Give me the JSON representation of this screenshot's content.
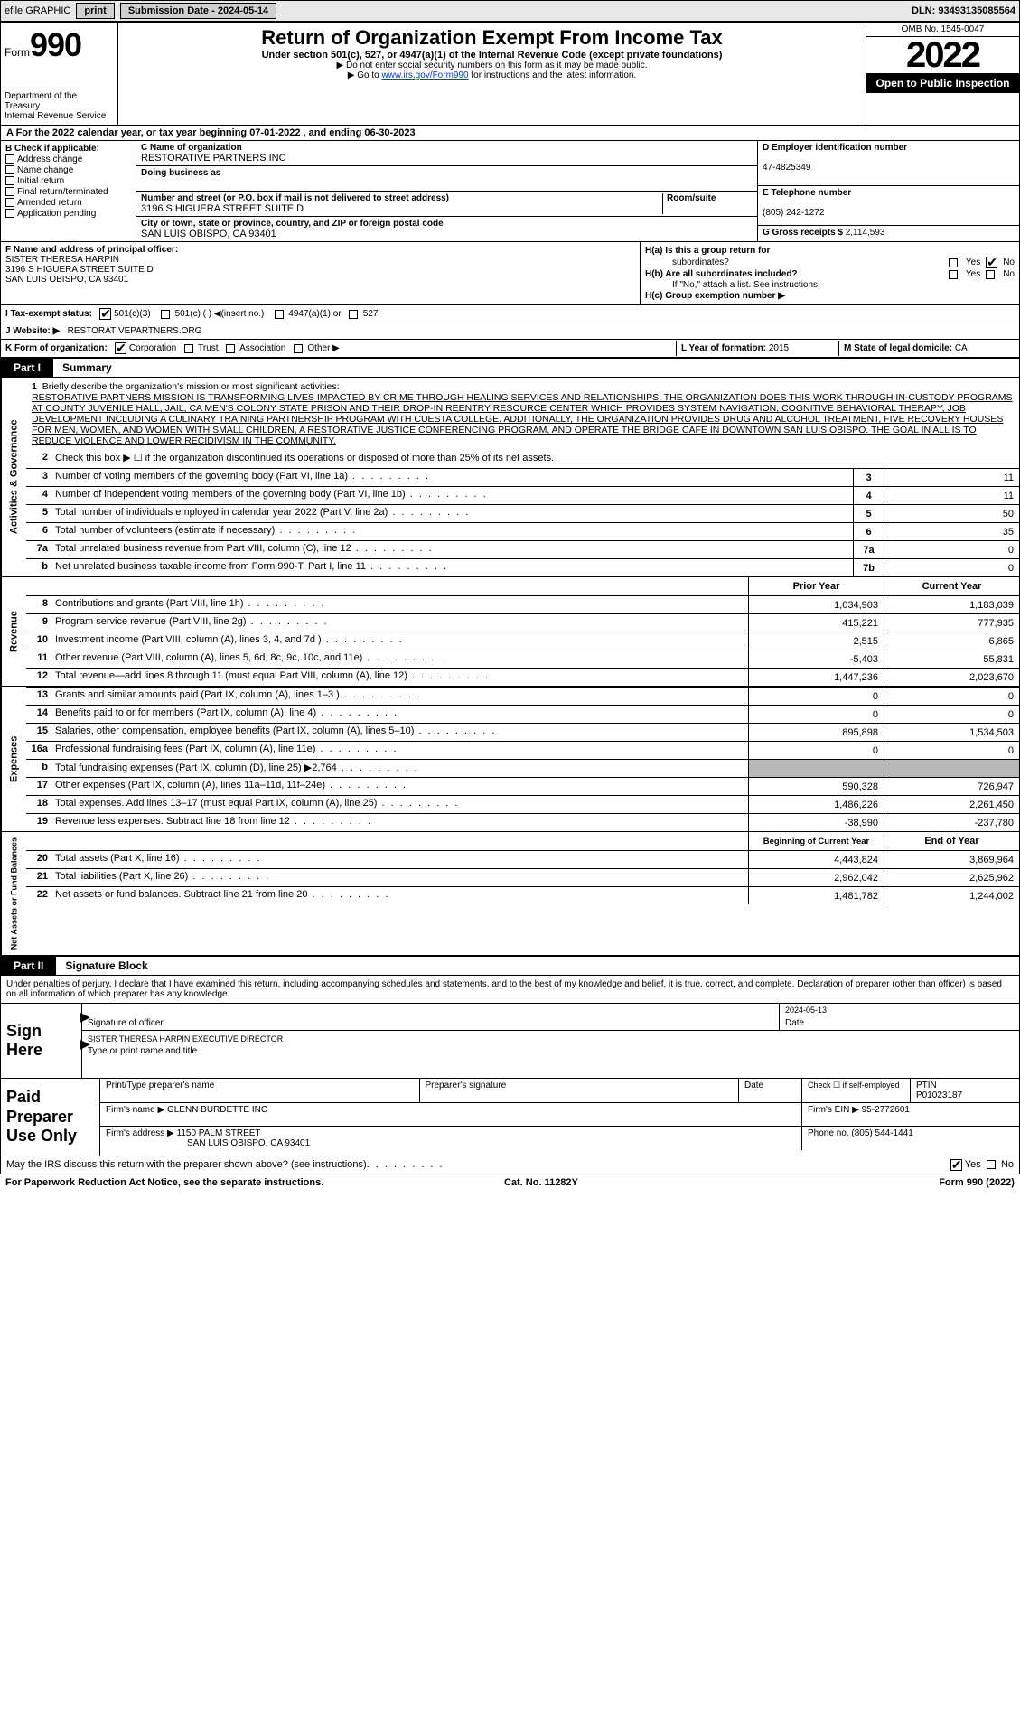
{
  "colors": {
    "bg": "#ffffff",
    "border": "#000000",
    "headerBg": "#e8e8e8",
    "btnBg": "#d0d0d0",
    "black": "#000000",
    "white": "#ffffff",
    "shaded": "#b8b8b8",
    "link": "#0044cc"
  },
  "topbar": {
    "efile": "efile GRAPHIC",
    "print": "print",
    "submission": "Submission Date - 2024-05-14",
    "dln": "DLN: 93493135085564"
  },
  "header": {
    "form": "Form",
    "num": "990",
    "dept": "Department of the Treasury",
    "irs": "Internal Revenue Service",
    "title": "Return of Organization Exempt From Income Tax",
    "sub1": "Under section 501(c), 527, or 4947(a)(1) of the Internal Revenue Code (except private foundations)",
    "sub2": "▶ Do not enter social security numbers on this form as it may be made public.",
    "sub3_pre": "▶ Go to ",
    "sub3_link": "www.irs.gov/Form990",
    "sub3_post": " for instructions and the latest information.",
    "omb": "OMB No. 1545-0047",
    "year": "2022",
    "open": "Open to Public Inspection"
  },
  "rowA": "A For the 2022 calendar year, or tax year beginning 07-01-2022   , and ending 06-30-2023",
  "colB": {
    "hdr": "B Check if applicable:",
    "opts": [
      "Address change",
      "Name change",
      "Initial return",
      "Final return/terminated",
      "Amended return",
      "Application pending"
    ]
  },
  "colC": {
    "name_lbl": "C Name of organization",
    "name_val": "RESTORATIVE PARTNERS INC",
    "dba_lbl": "Doing business as",
    "dba_val": "",
    "street_lbl": "Number and street (or P.O. box if mail is not delivered to street address)",
    "street_val": "3196 S HIGUERA STREET SUITE D",
    "room_lbl": "Room/suite",
    "city_lbl": "City or town, state or province, country, and ZIP or foreign postal code",
    "city_val": "SAN LUIS OBISPO, CA  93401"
  },
  "colDE": {
    "d_lbl": "D Employer identification number",
    "d_val": "47-4825349",
    "e_lbl": "E Telephone number",
    "e_val": "(805) 242-1272",
    "g_lbl": "G Gross receipts $",
    "g_val": "2,114,593"
  },
  "rowF": {
    "lbl": "F Name and address of principal officer:",
    "name": "SISTER THERESA HARPIN",
    "addr1": "3196 S HIGUERA STREET SUITE D",
    "addr2": "SAN LUIS OBISPO, CA  93401"
  },
  "rowH": {
    "ha": "H(a)  Is this a group return for",
    "ha2": "subordinates?",
    "hb": "H(b)  Are all subordinates included?",
    "hb2": "If \"No,\" attach a list. See instructions.",
    "hc": "H(c)  Group exemption number ▶",
    "yes": "Yes",
    "no": "No"
  },
  "rowI": {
    "lbl": "I    Tax-exempt status:",
    "opts": [
      "501(c)(3)",
      "501(c) (  ) ◀(insert no.)",
      "4947(a)(1) or",
      "527"
    ]
  },
  "rowJ": {
    "lbl": "J   Website: ▶",
    "val": "RESTORATIVEPARTNERS.ORG"
  },
  "rowK": {
    "lbl": "K Form of organization:",
    "opts": [
      "Corporation",
      "Trust",
      "Association",
      "Other ▶"
    ],
    "l_lbl": "L Year of formation:",
    "l_val": "2015",
    "m_lbl": "M State of legal domicile:",
    "m_val": "CA"
  },
  "part1": {
    "num": "Part I",
    "title": "Summary"
  },
  "sections": {
    "ag": "Activities & Governance",
    "rev": "Revenue",
    "exp": "Expenses",
    "nafb": "Net Assets or Fund Balances"
  },
  "mission": {
    "n": "1",
    "lbl": "Briefly describe the organization's mission or most significant activities:",
    "txt": "RESTORATIVE PARTNERS MISSION IS TRANSFORMING LIVES IMPACTED BY CRIME THROUGH HEALING SERVICES AND RELATIONSHIPS. THE ORGANIZATION DOES THIS WORK THROUGH IN-CUSTODY PROGRAMS AT COUNTY JUVENILE HALL, JAIL, CA MEN'S COLONY STATE PRISON AND THEIR DROP-IN REENTRY RESOURCE CENTER WHICH PROVIDES SYSTEM NAVIGATION, COGNITIVE BEHAVIORAL THERAPY, JOB DEVELOPMENT INCLUDING A CULINARY TRAINING PARTNERSHIP PROGRAM WITH CUESTA COLLEGE. ADDITIONALLY, THE ORGANIZATION PROVIDES DRUG AND ALCOHOL TREATMENT, FIVE RECOVERY HOUSES FOR MEN, WOMEN, AND WOMEN WITH SMALL CHILDREN, A RESTORATIVE JUSTICE CONFERENCING PROGRAM, AND OPERATE THE BRIDGE CAFE IN DOWNTOWN SAN LUIS OBISPO. THE GOAL IN ALL IS TO REDUCE VIOLENCE AND LOWER RECIDIVISM IN THE COMMUNITY."
  },
  "lines_ag": [
    {
      "n": "2",
      "txt": "Check this box ▶ ☐ if the organization discontinued its operations or disposed of more than 25% of its net assets.",
      "box": "",
      "val": ""
    },
    {
      "n": "3",
      "txt": "Number of voting members of the governing body (Part VI, line 1a)",
      "box": "3",
      "val": "11"
    },
    {
      "n": "4",
      "txt": "Number of independent voting members of the governing body (Part VI, line 1b)",
      "box": "4",
      "val": "11"
    },
    {
      "n": "5",
      "txt": "Total number of individuals employed in calendar year 2022 (Part V, line 2a)",
      "box": "5",
      "val": "50"
    },
    {
      "n": "6",
      "txt": "Total number of volunteers (estimate if necessary)",
      "box": "6",
      "val": "35"
    },
    {
      "n": "7a",
      "txt": "Total unrelated business revenue from Part VIII, column (C), line 12",
      "box": "7a",
      "val": "0"
    },
    {
      "n": "b",
      "txt": "Net unrelated business taxable income from Form 990-T, Part I, line 11",
      "box": "7b",
      "val": "0"
    }
  ],
  "col_hdrs": {
    "prior": "Prior Year",
    "current": "Current Year"
  },
  "lines_rev": [
    {
      "n": "8",
      "txt": "Contributions and grants (Part VIII, line 1h)",
      "p": "1,034,903",
      "c": "1,183,039"
    },
    {
      "n": "9",
      "txt": "Program service revenue (Part VIII, line 2g)",
      "p": "415,221",
      "c": "777,935"
    },
    {
      "n": "10",
      "txt": "Investment income (Part VIII, column (A), lines 3, 4, and 7d )",
      "p": "2,515",
      "c": "6,865"
    },
    {
      "n": "11",
      "txt": "Other revenue (Part VIII, column (A), lines 5, 6d, 8c, 9c, 10c, and 11e)",
      "p": "-5,403",
      "c": "55,831"
    },
    {
      "n": "12",
      "txt": "Total revenue—add lines 8 through 11 (must equal Part VIII, column (A), line 12)",
      "p": "1,447,236",
      "c": "2,023,670"
    }
  ],
  "lines_exp": [
    {
      "n": "13",
      "txt": "Grants and similar amounts paid (Part IX, column (A), lines 1–3 )",
      "p": "0",
      "c": "0"
    },
    {
      "n": "14",
      "txt": "Benefits paid to or for members (Part IX, column (A), line 4)",
      "p": "0",
      "c": "0"
    },
    {
      "n": "15",
      "txt": "Salaries, other compensation, employee benefits (Part IX, column (A), lines 5–10)",
      "p": "895,898",
      "c": "1,534,503"
    },
    {
      "n": "16a",
      "txt": "Professional fundraising fees (Part IX, column (A), line 11e)",
      "p": "0",
      "c": "0"
    },
    {
      "n": "b",
      "txt": "Total fundraising expenses (Part IX, column (D), line 25) ▶2,764",
      "p": "",
      "c": "",
      "shaded": true
    },
    {
      "n": "17",
      "txt": "Other expenses (Part IX, column (A), lines 11a–11d, 11f–24e)",
      "p": "590,328",
      "c": "726,947"
    },
    {
      "n": "18",
      "txt": "Total expenses. Add lines 13–17 (must equal Part IX, column (A), line 25)",
      "p": "1,486,226",
      "c": "2,261,450"
    },
    {
      "n": "19",
      "txt": "Revenue less expenses. Subtract line 18 from line 12",
      "p": "-38,990",
      "c": "-237,780"
    }
  ],
  "col_hdrs2": {
    "beg": "Beginning of Current Year",
    "end": "End of Year"
  },
  "lines_na": [
    {
      "n": "20",
      "txt": "Total assets (Part X, line 16)",
      "p": "4,443,824",
      "c": "3,869,964"
    },
    {
      "n": "21",
      "txt": "Total liabilities (Part X, line 26)",
      "p": "2,962,042",
      "c": "2,625,962"
    },
    {
      "n": "22",
      "txt": "Net assets or fund balances. Subtract line 21 from line 20",
      "p": "1,481,782",
      "c": "1,244,002"
    }
  ],
  "part2": {
    "num": "Part II",
    "title": "Signature Block"
  },
  "sig": {
    "intro": "Under penalties of perjury, I declare that I have examined this return, including accompanying schedules and statements, and to the best of my knowledge and belief, it is true, correct, and complete. Declaration of preparer (other than officer) is based on all information of which preparer has any knowledge.",
    "here": "Sign Here",
    "off_lbl": "Signature of officer",
    "date_lbl": "Date",
    "date_val": "2024-05-13",
    "name_val": "SISTER THERESA HARPIN  EXECUTIVE DIRECTOR",
    "name_lbl": "Type or print name and title"
  },
  "paid": {
    "hdr": "Paid Preparer Use Only",
    "r1": {
      "c1": "Print/Type preparer's name",
      "c2": "Preparer's signature",
      "c3": "Date",
      "c4": "Check ☐ if self-employed",
      "c5_lbl": "PTIN",
      "c5_val": "P01023187"
    },
    "r2": {
      "c1": "Firm's name    ▶",
      "c1v": "GLENN BURDETTE INC",
      "c2": "Firm's EIN ▶",
      "c2v": "95-2772601"
    },
    "r3": {
      "c1": "Firm's address ▶",
      "c1v": "1150 PALM STREET",
      "c1v2": "SAN LUIS OBISPO, CA  93401",
      "c2": "Phone no.",
      "c2v": "(805) 544-1441"
    }
  },
  "discuss": {
    "txt": "May the IRS discuss this return with the preparer shown above? (see instructions)",
    "yes": "Yes",
    "no": "No"
  },
  "foot": {
    "l": "For Paperwork Reduction Act Notice, see the separate instructions.",
    "m": "Cat. No. 11282Y",
    "r": "Form 990 (2022)"
  }
}
